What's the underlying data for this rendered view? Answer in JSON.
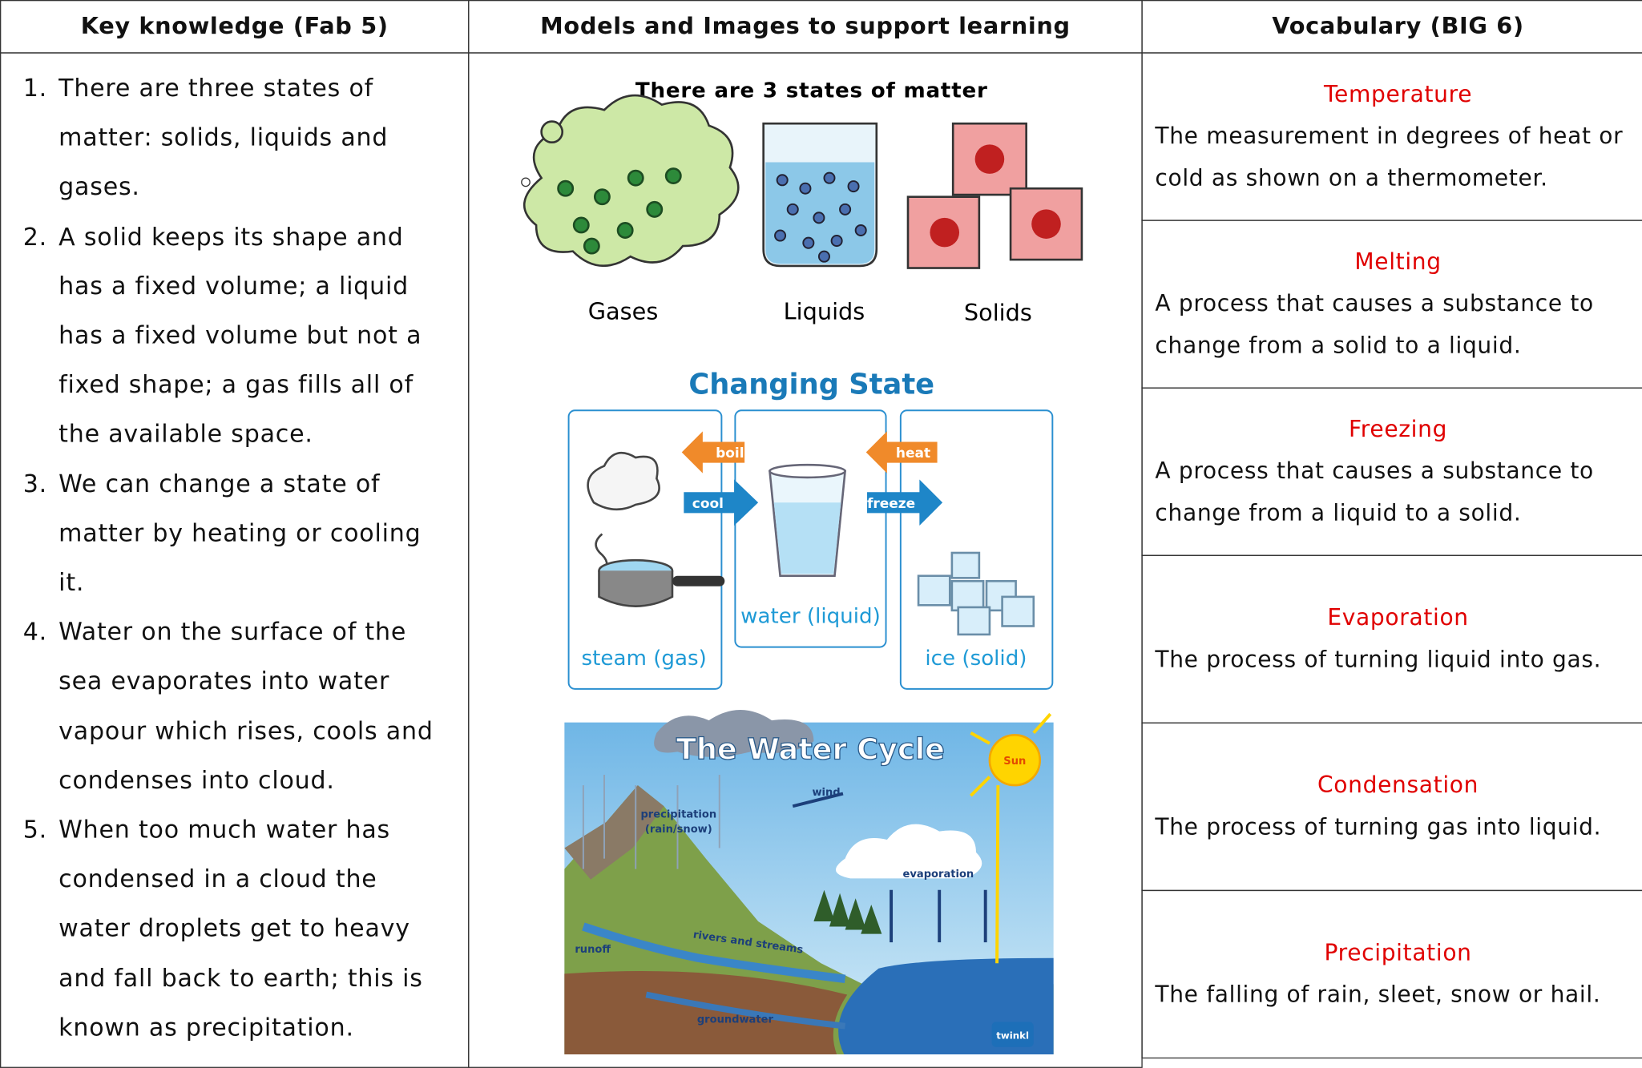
{
  "header": [
    "Key knowledge (Fab 5)",
    "Models and Images to support learning",
    "Vocabulary (BIG 6)"
  ],
  "key_knowledge": [
    {
      "number": "1.",
      "text": "There are three states of matter: solids, liquids and gases."
    },
    {
      "number": "2.",
      "text": "A solid keeps its shape and has a fixed volume; a liquid has a fixed volume but not a fixed shape; a gas fills all of the available space."
    },
    {
      "number": "3.",
      "text": "We can change a state of matter by heating or cooling it."
    },
    {
      "number": "4.",
      "text": "Water on the surface of the sea evaporates into water vapour which rises, cools and condenses into cloud."
    },
    {
      "number": "5.",
      "text": "When too much water has condensed in a cloud the water droplets get to heavy and fall back to earth; this is known as precipitation."
    }
  ],
  "models": {
    "states": {
      "title": "There are 3 states of matter",
      "labels": [
        "Gases",
        "Liquids",
        "Solids"
      ]
    },
    "changing_state": {
      "title": "Changing State",
      "arrows": [
        "boil",
        "cool",
        "heat",
        "freeze"
      ],
      "labels": [
        "steam (gas)",
        "water (liquid)",
        "ice (solid)"
      ]
    },
    "water_cycle": {
      "title": "The Water Cycle",
      "sun": "Sun",
      "wind": "wind",
      "precipitation": [
        "precipitation",
        "(rain/snow)"
      ],
      "evaporation": "evaporation",
      "rivers": "rivers and streams",
      "runoff": "runoff",
      "groundwater": "groundwater",
      "brand": "twinkl"
    }
  },
  "vocabulary": [
    {
      "term": "Temperature",
      "definition": "The measurement in degrees of heat or cold as shown on a thermometer."
    },
    {
      "term": "Melting",
      "definition": "A process that causes a substance to change from a solid to a liquid."
    },
    {
      "term": "Freezing",
      "definition": "A process that causes a substance to change from a liquid to a solid."
    },
    {
      "term": "Evaporation",
      "definition": "The process of turning liquid into gas."
    },
    {
      "term": "Condensation",
      "definition": "The process of turning gas into liquid."
    },
    {
      "term": "Precipitation",
      "definition": "The falling of rain, sleet, snow or hail."
    }
  ]
}
